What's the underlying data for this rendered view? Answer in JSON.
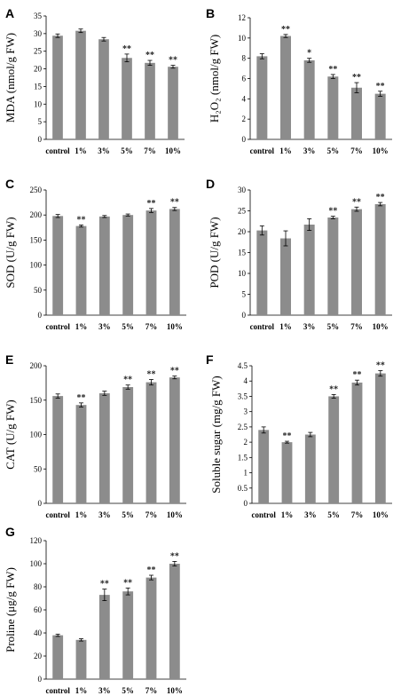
{
  "chart_data": [
    {
      "panel": "A",
      "type": "bar",
      "ylabel": "MDA (nmol/g FW)",
      "categories": [
        "control",
        "1%",
        "3%",
        "5%",
        "7%",
        "10%"
      ],
      "values": [
        29.4,
        30.8,
        28.4,
        23.1,
        21.7,
        20.6
      ],
      "errors": [
        0.5,
        0.5,
        0.5,
        1.1,
        0.7,
        0.4
      ],
      "significance": [
        "",
        "",
        "",
        "**",
        "**",
        "**"
      ],
      "ylim": [
        0,
        35
      ],
      "yticks": [
        0,
        5,
        10,
        15,
        20,
        25,
        30,
        35
      ]
    },
    {
      "panel": "B",
      "type": "bar",
      "ylabel": "H₂O₂ (nmol/g FW)",
      "categories": [
        "control",
        "1%",
        "3%",
        "5%",
        "7%",
        "10%"
      ],
      "values": [
        8.2,
        10.2,
        7.8,
        6.2,
        5.1,
        4.5
      ],
      "errors": [
        0.25,
        0.15,
        0.2,
        0.2,
        0.5,
        0.25
      ],
      "significance": [
        "",
        "**",
        "*",
        "**",
        "**",
        "**"
      ],
      "ylim": [
        0,
        12
      ],
      "yticks": [
        0,
        2,
        4,
        6,
        8,
        10,
        12
      ]
    },
    {
      "panel": "C",
      "type": "bar",
      "ylabel": "SOD (U/g FW)",
      "categories": [
        "control",
        "1%",
        "3%",
        "5%",
        "7%",
        "10%"
      ],
      "values": [
        198,
        178,
        197,
        200,
        209,
        212
      ],
      "errors": [
        3,
        2,
        2,
        2,
        4,
        3
      ],
      "significance": [
        "",
        "**",
        "",
        "",
        "**",
        "**"
      ],
      "ylim": [
        0,
        250
      ],
      "yticks": [
        0,
        50,
        100,
        150,
        200,
        250
      ]
    },
    {
      "panel": "D",
      "type": "bar",
      "ylabel": "POD (U/g FW)",
      "categories": [
        "control",
        "1%",
        "3%",
        "5%",
        "7%",
        "10%"
      ],
      "values": [
        20.3,
        18.4,
        21.7,
        23.4,
        25.4,
        26.6
      ],
      "errors": [
        1.1,
        1.8,
        1.4,
        0.3,
        0.5,
        0.4
      ],
      "significance": [
        "",
        "",
        "",
        "**",
        "**",
        "**"
      ],
      "ylim": [
        0,
        30
      ],
      "yticks": [
        0,
        5,
        10,
        15,
        20,
        25,
        30
      ]
    },
    {
      "panel": "E",
      "type": "bar",
      "ylabel": "CAT (U/g FW)",
      "categories": [
        "control",
        "1%",
        "3%",
        "5%",
        "7%",
        "10%"
      ],
      "values": [
        156,
        143,
        160,
        169,
        176,
        183
      ],
      "errors": [
        3,
        3,
        3,
        3,
        4,
        2
      ],
      "significance": [
        "",
        "**",
        "",
        "**",
        "**",
        "**"
      ],
      "ylim": [
        0,
        200
      ],
      "yticks": [
        0,
        50,
        100,
        150,
        200
      ]
    },
    {
      "panel": "F",
      "type": "bar",
      "ylabel": "Soluble sugar (mg/g FW)",
      "categories": [
        "control",
        "1%",
        "3%",
        "5%",
        "7%",
        "10%"
      ],
      "values": [
        2.4,
        2.0,
        2.25,
        3.5,
        3.95,
        4.25
      ],
      "errors": [
        0.1,
        0.03,
        0.07,
        0.06,
        0.08,
        0.09
      ],
      "significance": [
        "",
        "**",
        "",
        "**",
        "**",
        "**"
      ],
      "ylim": [
        0,
        4.5
      ],
      "yticks": [
        0,
        0.5,
        1,
        1.5,
        2,
        2.5,
        3,
        3.5,
        4,
        4.5
      ]
    },
    {
      "panel": "G",
      "type": "bar",
      "ylabel": "Proline (μg/g FW)",
      "categories": [
        "control",
        "1%",
        "3%",
        "5%",
        "7%",
        "10%"
      ],
      "values": [
        38,
        34,
        73,
        76,
        88,
        100
      ],
      "errors": [
        1,
        1,
        5,
        3,
        2,
        2
      ],
      "significance": [
        "",
        "",
        "**",
        "**",
        "**",
        "**"
      ],
      "ylim": [
        0,
        120
      ],
      "yticks": [
        0,
        20,
        40,
        60,
        80,
        100,
        120
      ]
    }
  ]
}
